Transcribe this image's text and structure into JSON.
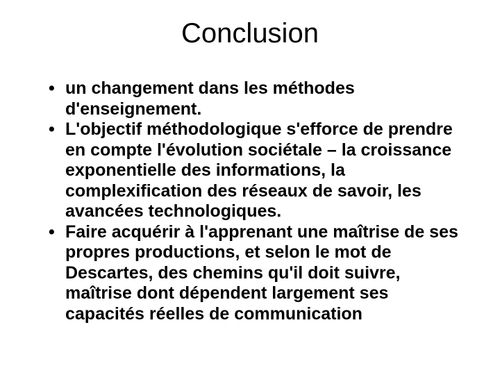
{
  "slide": {
    "title": "Conclusion",
    "bullets": [
      "un changement dans les méthodes d'enseignement.",
      "L'objectif méthodologique s'efforce de prendre en compte l'évolution sociétale – la croissance exponentielle des informations, la complexification des réseaux de savoir, les avancées technologiques.",
      "Faire acquérir à l'apprenant une maîtrise de ses propres productions, et selon le mot de Descartes, des chemins qu'il doit suivre, maîtrise dont dépendent largement ses capacités réelles de communication"
    ],
    "styling": {
      "background_color": "#ffffff",
      "text_color": "#000000",
      "title_fontsize": 40,
      "title_weight": 400,
      "bullet_fontsize": 25,
      "bullet_weight": 700,
      "font_family": "Arial"
    }
  }
}
